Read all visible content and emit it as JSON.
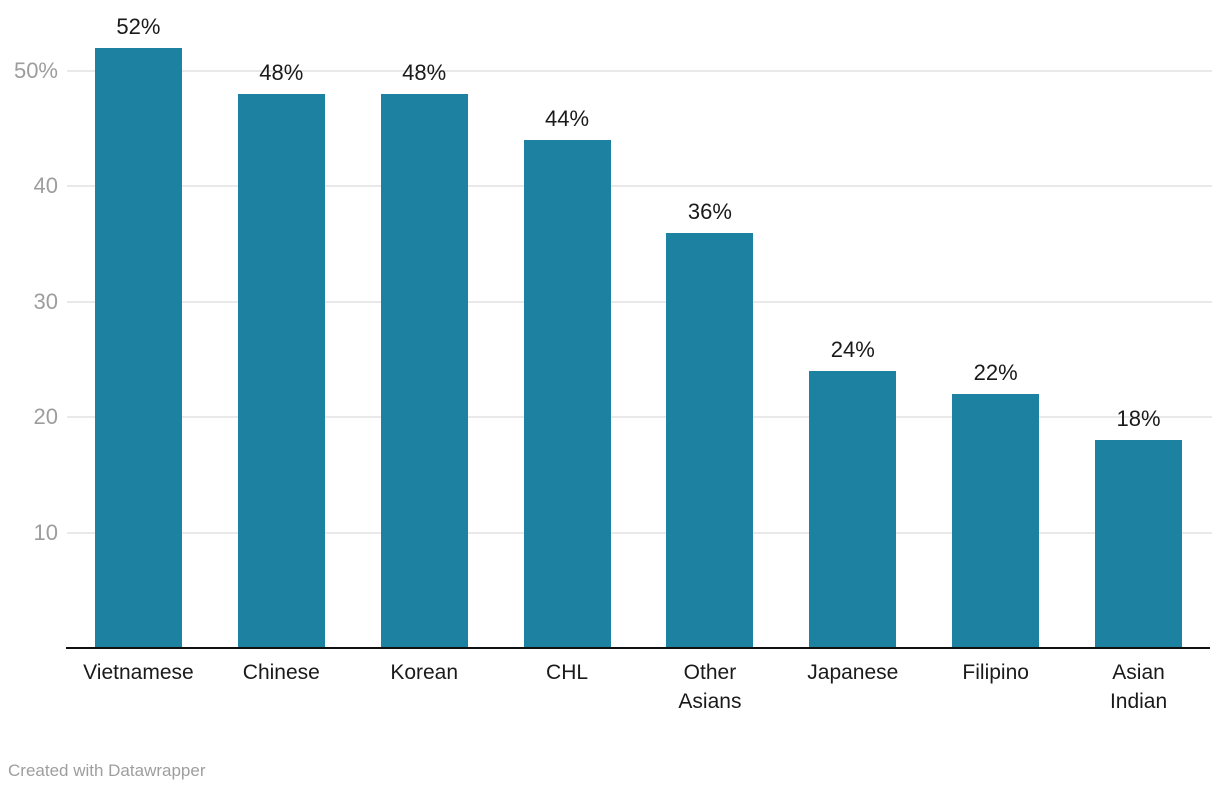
{
  "chart_data": {
    "type": "bar",
    "categories": [
      "Vietnamese",
      "Chinese",
      "Korean",
      "CHL",
      "Other\nAsians",
      "Japanese",
      "Filipino",
      "Asian\nIndian"
    ],
    "values": [
      52,
      48,
      48,
      44,
      36,
      24,
      22,
      18
    ],
    "value_labels": [
      "52%",
      "48%",
      "48%",
      "44%",
      "36%",
      "24%",
      "22%",
      "18%"
    ],
    "title": "",
    "xlabel": "",
    "ylabel": "",
    "ylim": [
      0,
      52
    ],
    "y_ticks": [
      {
        "value": 10,
        "label": "10"
      },
      {
        "value": 20,
        "label": "20"
      },
      {
        "value": 30,
        "label": "30"
      },
      {
        "value": 40,
        "label": "40"
      },
      {
        "value": 50,
        "label": "50%"
      }
    ],
    "grid": true,
    "legend": "none",
    "bar_color": "#1d81a2"
  },
  "colors": {
    "bar": "#1d81a2",
    "gridline": "#e9e9e9",
    "axis_line": "#111111",
    "tick_label": "#9d9d9d",
    "data_label": "#1a1a1a",
    "footer_text": "#9e9e9e"
  },
  "footer": {
    "credit": "Created with Datawrapper"
  }
}
